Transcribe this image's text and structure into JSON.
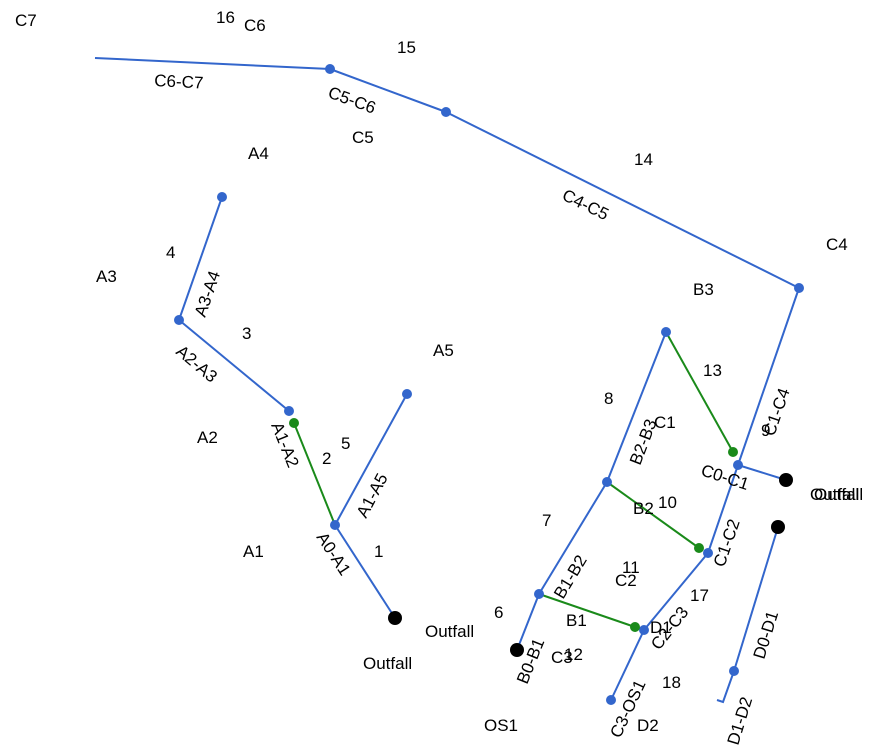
{
  "colors": {
    "conduit": "#3366cc",
    "link": "#1a8a1a",
    "node": "#3366cc",
    "outfall": "#000000",
    "text": "#000000",
    "background": "#ffffff"
  },
  "nodes": [
    {
      "id": "C7",
      "label": "C7"
    },
    {
      "id": "C6",
      "label": "C6"
    },
    {
      "id": "C5",
      "label": "C5"
    },
    {
      "id": "C4",
      "label": "C4"
    },
    {
      "id": "A4",
      "label": "A4"
    },
    {
      "id": "A3",
      "label": "A3"
    },
    {
      "id": "A5",
      "label": "A5"
    },
    {
      "id": "A2",
      "label": "A2"
    },
    {
      "id": "A1",
      "label": "A1"
    },
    {
      "id": "B3",
      "label": "B3"
    },
    {
      "id": "C1",
      "label": "C1"
    },
    {
      "id": "B2",
      "label": "B2"
    },
    {
      "id": "C2",
      "label": "C2"
    },
    {
      "id": "B1",
      "label": "B1"
    },
    {
      "id": "D1",
      "label": "D1"
    },
    {
      "id": "C3",
      "label": "C3"
    },
    {
      "id": "OS1",
      "label": "OS1"
    },
    {
      "id": "D2",
      "label": "D2"
    },
    {
      "id": "outfall-a",
      "label": "Outfall"
    },
    {
      "id": "outfall-b",
      "label": "Outfall"
    },
    {
      "id": "outfall-c",
      "label": "Outfall"
    },
    {
      "id": "outfall-d",
      "label": "Outfall"
    }
  ],
  "links": [
    {
      "id": "C6-C7",
      "label": "C6-C7",
      "type": "conduit"
    },
    {
      "id": "C5-C6",
      "label": "C5-C6",
      "type": "conduit"
    },
    {
      "id": "C4-C5",
      "label": "C4-C5",
      "type": "conduit"
    },
    {
      "id": "C1-C4",
      "label": "C1-C4",
      "type": "conduit"
    },
    {
      "id": "A3-A4",
      "label": "A3-A4",
      "type": "conduit"
    },
    {
      "id": "A2-A3",
      "label": "A2-A3",
      "type": "conduit"
    },
    {
      "id": "A1-A2",
      "label": "A1-A2",
      "type": "conduit"
    },
    {
      "id": "A1-A5",
      "label": "A1-A5",
      "type": "conduit"
    },
    {
      "id": "A0-A1",
      "label": "A0-A1",
      "type": "conduit"
    },
    {
      "id": "B2-B3",
      "label": "B2-B3",
      "type": "conduit"
    },
    {
      "id": "B1-B2",
      "label": "B1-B2",
      "type": "conduit"
    },
    {
      "id": "B0-B1",
      "label": "B0-B1",
      "type": "conduit"
    },
    {
      "id": "C0-C1",
      "label": "C0-C1",
      "type": "conduit"
    },
    {
      "id": "C1-C2",
      "label": "C1-C2",
      "type": "conduit"
    },
    {
      "id": "C2-C3",
      "label": "C2-C3",
      "type": "conduit"
    },
    {
      "id": "C3-OS1",
      "label": "C3-OS1",
      "type": "conduit"
    },
    {
      "id": "D0-D1",
      "label": "D0-D1",
      "type": "conduit"
    },
    {
      "id": "D1-D2",
      "label": "D1-D2",
      "type": "conduit"
    },
    {
      "id": "B3-C1",
      "label": "",
      "type": "link"
    },
    {
      "id": "B2-C2",
      "label": "",
      "type": "link"
    },
    {
      "id": "B1-C3",
      "label": "",
      "type": "link"
    },
    {
      "id": "A2-A1-link",
      "label": "",
      "type": "link"
    }
  ],
  "subcatchments": [
    "1",
    "2",
    "3",
    "4",
    "5",
    "6",
    "7",
    "8",
    "9",
    "10",
    "11",
    "12",
    "13",
    "14",
    "15",
    "16",
    "17",
    "18"
  ]
}
